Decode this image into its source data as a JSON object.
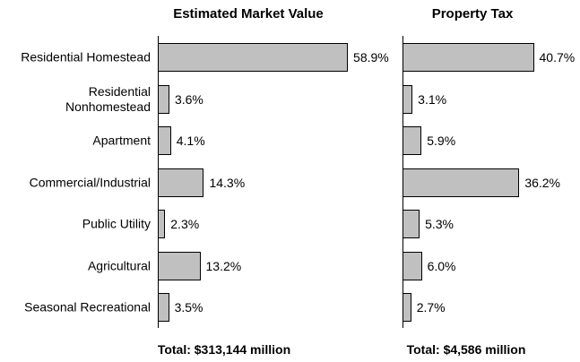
{
  "chart_data": [
    {
      "type": "bar",
      "orientation": "horizontal",
      "title": "Estimated Market Value",
      "categories": [
        "Residential Homestead",
        "Residential Nonhomestead",
        "Apartment",
        "Commercial/Industrial",
        "Public Utility",
        "Agricultural",
        "Seasonal Recreational"
      ],
      "values": [
        58.9,
        3.6,
        4.1,
        14.3,
        2.3,
        13.2,
        3.5
      ],
      "value_labels": [
        "58.9%",
        "3.6%",
        "4.1%",
        "14.3%",
        "2.3%",
        "13.2%",
        "3.5%"
      ],
      "color": "#c0c0c0",
      "annotation": "Total: $313,144 million"
    },
    {
      "type": "bar",
      "orientation": "horizontal",
      "title": "Property Tax",
      "values": [
        40.7,
        3.1,
        5.9,
        36.2,
        5.3,
        6.0,
        2.7
      ],
      "value_labels": [
        "40.7%",
        "3.1%",
        "5.9%",
        "36.2%",
        "5.3%",
        "6.0%",
        "2.7%"
      ],
      "color": "#c0c0c0",
      "annotation": "Total: $4,586 million"
    }
  ]
}
